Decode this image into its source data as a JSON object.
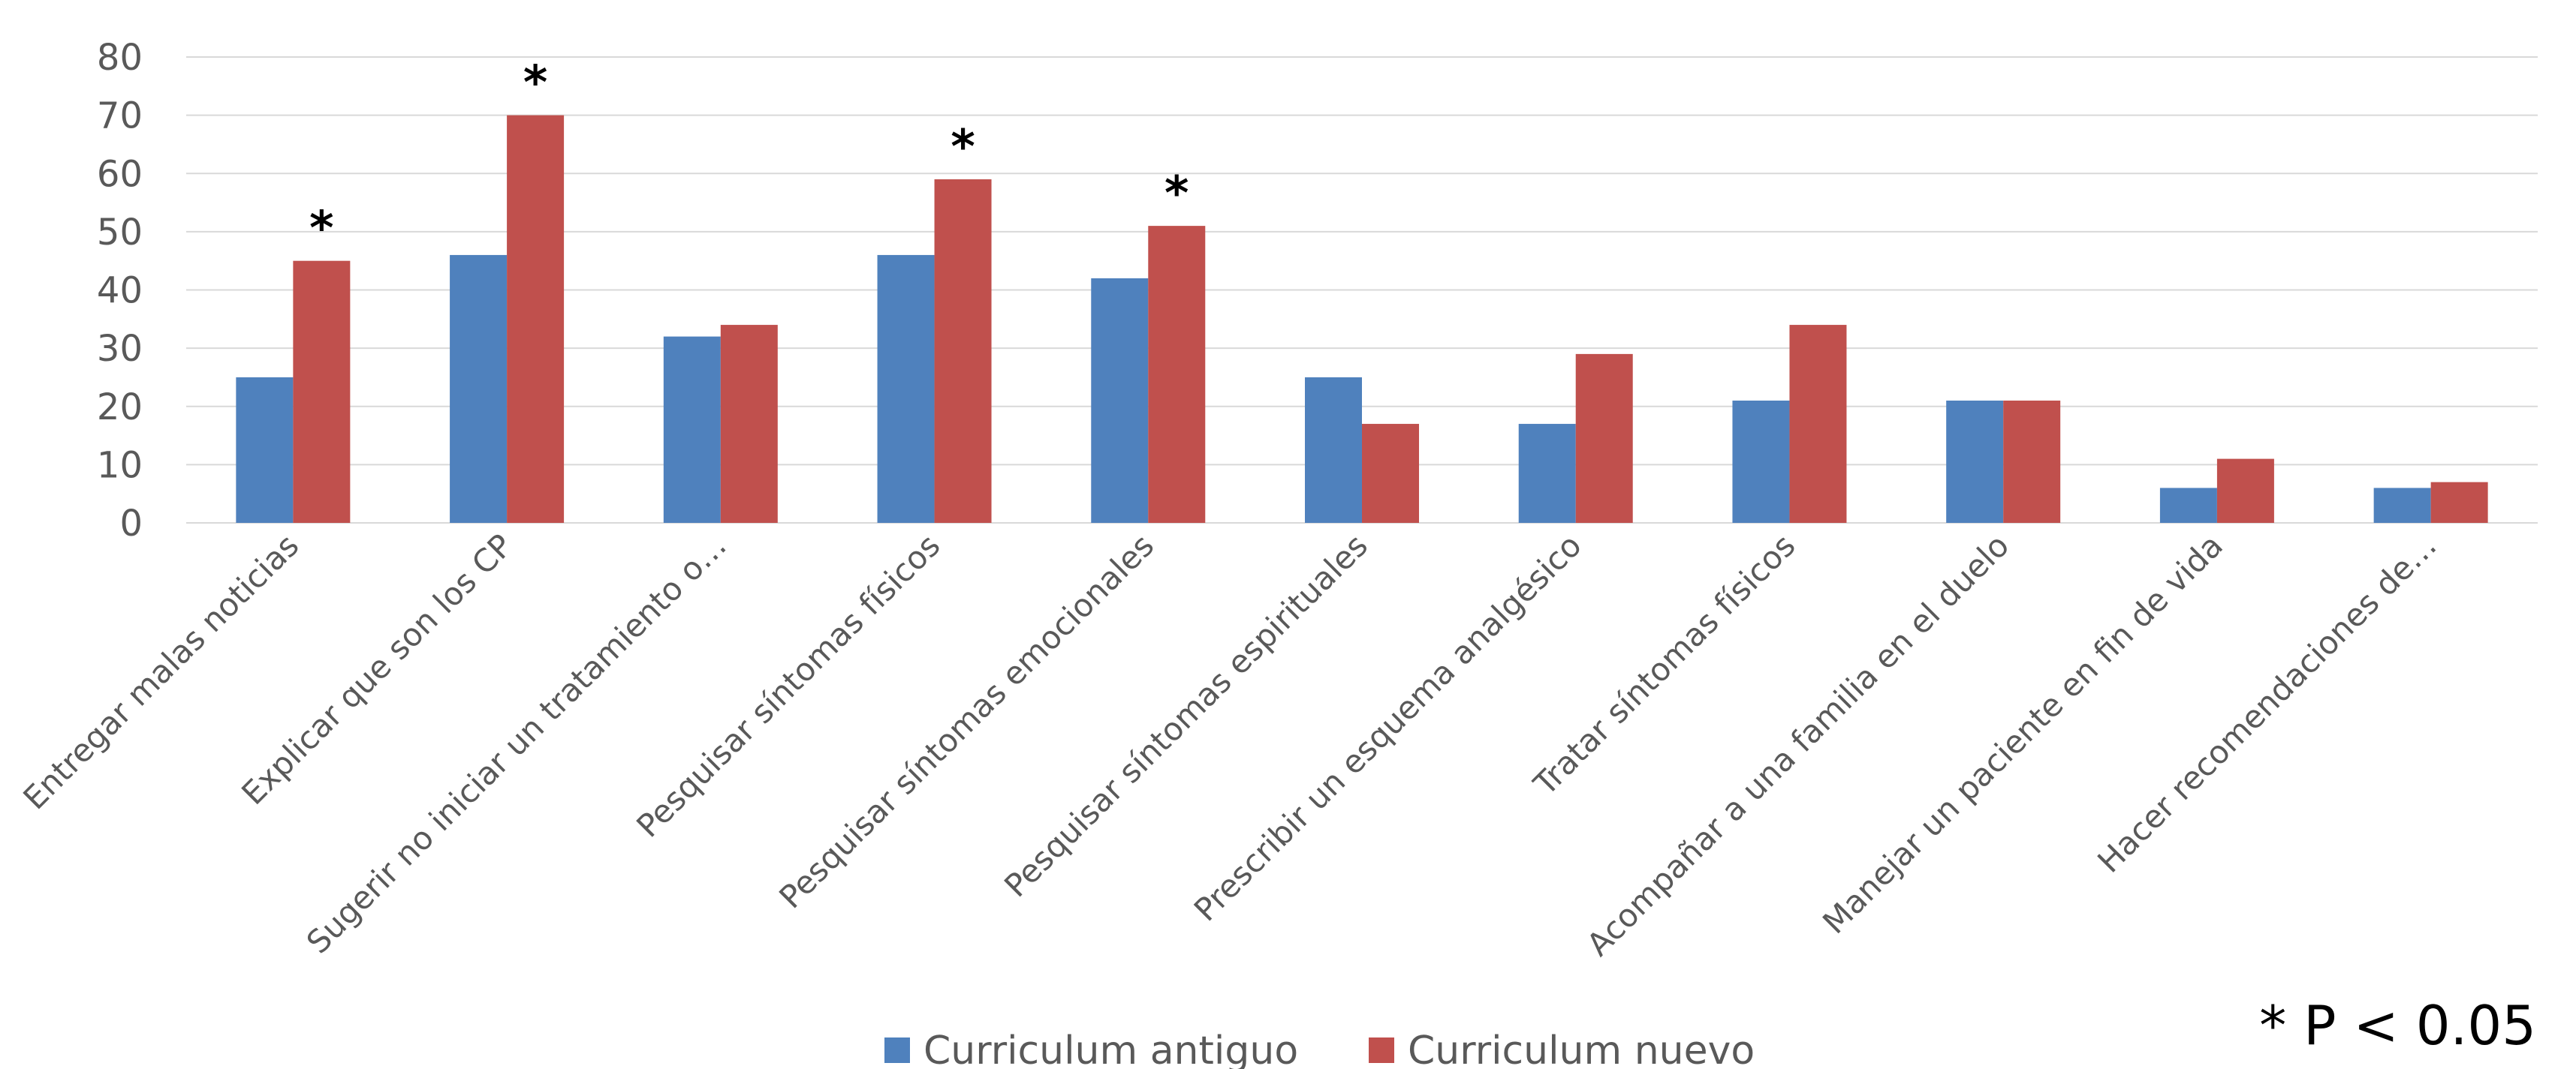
{
  "chart_data": {
    "type": "bar",
    "title": "",
    "xlabel": "",
    "ylabel": "",
    "ylim": [
      0,
      80
    ],
    "yticks": [
      0,
      10,
      20,
      30,
      40,
      50,
      60,
      70,
      80
    ],
    "grid": true,
    "legend_position": "bottom",
    "categories": [
      "Entregar malas noticias",
      "Explicar que son los CP",
      "Sugerir no iniciar un tratamiento o…",
      "Pesquisar síntomas físicos",
      "Pesquisar síntomas emocionales",
      "Pesquisar síntomas espirituales",
      "Prescribir un esquema analgésico",
      "Tratar síntomas físicos",
      "Acompañar a una familia en el duelo",
      "Manejar un paciente en fin de vida",
      "Hacer recomendaciones de…"
    ],
    "series": [
      {
        "name": "Curriculum antiguo",
        "color": "#4F81BD",
        "values": [
          25,
          46,
          32,
          46,
          42,
          25,
          17,
          21,
          21,
          6,
          6
        ]
      },
      {
        "name": "Curriculum nuevo",
        "color": "#C0504D",
        "values": [
          45,
          70,
          34,
          59,
          51,
          17,
          29,
          34,
          21,
          11,
          7
        ]
      }
    ],
    "significance_marker": "*",
    "significant_categories": [
      0,
      1,
      3,
      4
    ],
    "annotation": "* P < 0.05"
  }
}
